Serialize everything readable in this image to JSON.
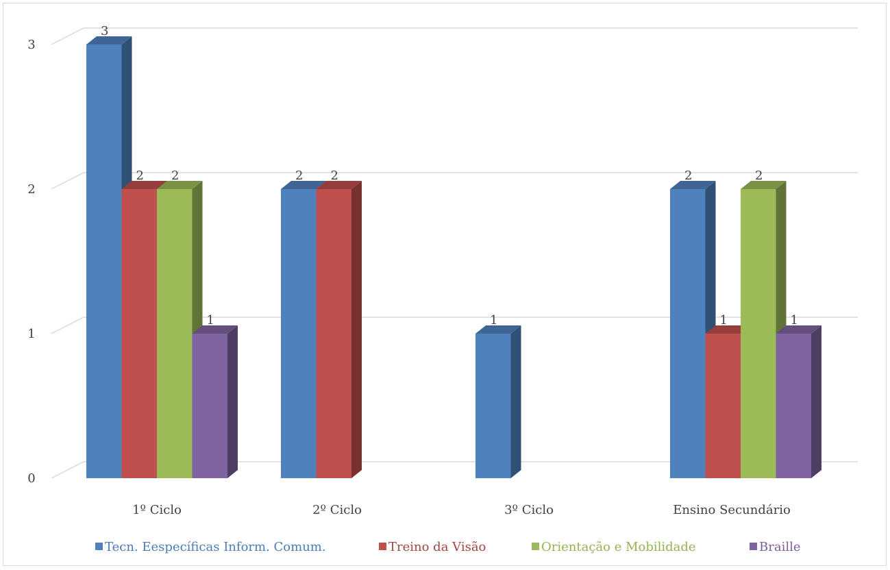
{
  "chart_data": {
    "type": "bar",
    "style": "3d-clustered-column",
    "categories": [
      "1º Ciclo",
      "2º Ciclo",
      "3º Ciclo",
      "Ensino Secundário"
    ],
    "series": [
      {
        "name": "Tecn. Eespecíficas Inform. Comum.",
        "color": "#4f81bd",
        "values": [
          3,
          2,
          1,
          2
        ]
      },
      {
        "name": "Treino da Visão",
        "color": "#c0504d",
        "values": [
          2,
          2,
          null,
          1
        ]
      },
      {
        "name": "Orientação e Mobilidade",
        "color": "#9bbb59",
        "values": [
          2,
          null,
          null,
          2
        ]
      },
      {
        "name": "Braille",
        "color": "#8064a2",
        "values": [
          1,
          null,
          null,
          1
        ]
      }
    ],
    "yticks": [
      "0",
      "1",
      "2",
      "3"
    ],
    "ylim": [
      0,
      3
    ],
    "grid": true,
    "legend_position": "bottom",
    "data_labels": true
  }
}
